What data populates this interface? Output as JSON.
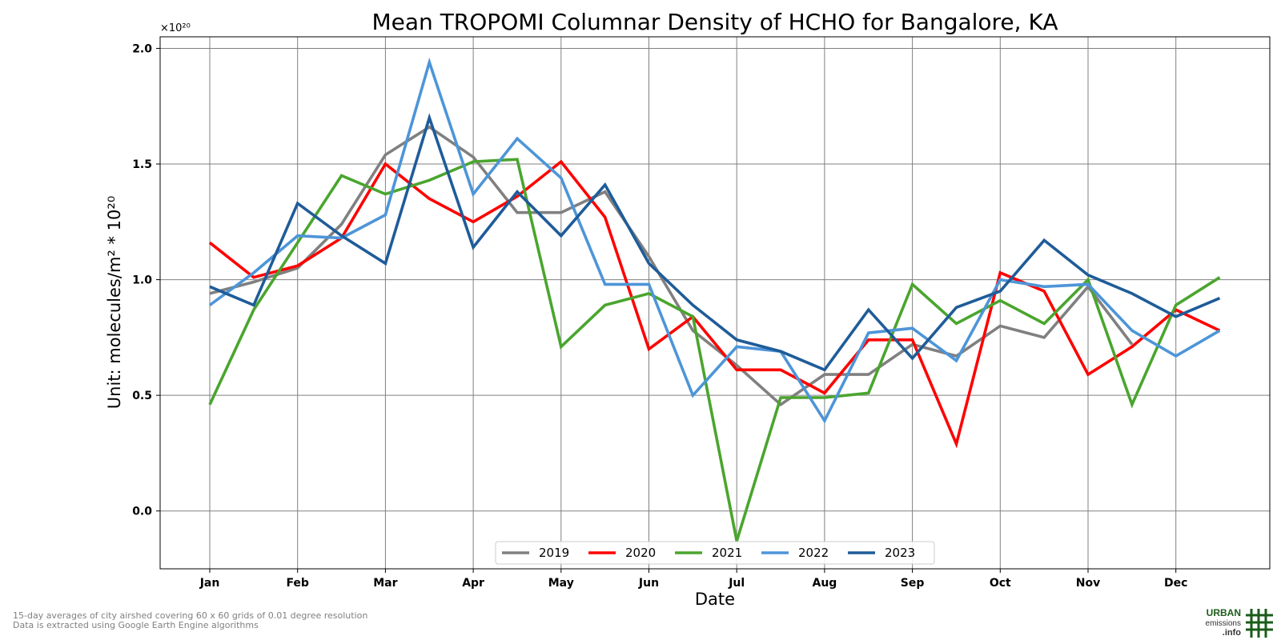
{
  "chart_data": {
    "type": "line",
    "title": "Mean TROPOMI Columnar Density of HCHO for Bangalore, KA",
    "xlabel": "Date",
    "ylabel": "Unit: molecules/m² * 10²⁰",
    "y_scale_label": "×10²⁰",
    "ylim": [
      -0.25,
      2.05
    ],
    "y_ticks": [
      0.0,
      0.5,
      1.0,
      1.5,
      2.0
    ],
    "y_tick_labels": [
      "0.0",
      "0.5",
      "1.0",
      "1.5",
      "2.0"
    ],
    "x_ticks": [
      "Jan",
      "Feb",
      "Mar",
      "Apr",
      "May",
      "Jun",
      "Jul",
      "Aug",
      "Sep",
      "Oct",
      "Nov",
      "Dec"
    ],
    "grid": true,
    "legend_position": "bottom-center",
    "series": [
      {
        "name": "2019",
        "color": "#808080",
        "values": [
          0.94,
          0.99,
          1.05,
          1.24,
          1.54,
          1.66,
          1.53,
          1.29,
          1.29,
          1.38,
          1.1,
          0.78,
          0.63,
          0.46,
          0.59,
          0.59,
          0.72,
          0.67,
          0.8,
          0.75,
          0.97,
          0.72
        ]
      },
      {
        "name": "2020",
        "color": "#ff0000",
        "values": [
          1.16,
          1.01,
          1.06,
          1.18,
          1.5,
          1.35,
          1.25,
          1.36,
          1.51,
          1.27,
          0.7,
          0.84,
          0.61,
          0.61,
          0.51,
          0.74,
          0.74,
          0.29,
          1.03,
          0.95,
          0.59,
          0.71,
          0.87,
          0.78
        ]
      },
      {
        "name": "2021",
        "color": "#4aa52e",
        "values": [
          0.46,
          0.87,
          1.16,
          1.45,
          1.37,
          1.43,
          1.51,
          1.52,
          0.71,
          0.89,
          0.94,
          0.84,
          -0.13,
          0.49,
          0.49,
          0.51,
          0.98,
          0.81,
          0.91,
          0.81,
          1.0,
          0.46,
          0.89,
          1.01
        ]
      },
      {
        "name": "2022",
        "color": "#4d95d8",
        "values": [
          0.89,
          1.03,
          1.19,
          1.18,
          1.28,
          1.94,
          1.37,
          1.61,
          1.44,
          0.98,
          0.98,
          0.5,
          0.71,
          0.69,
          0.39,
          0.77,
          0.79,
          0.65,
          1.0,
          0.97,
          0.98,
          0.78,
          0.67,
          0.78
        ]
      },
      {
        "name": "2023",
        "color": "#1f5c99",
        "values": [
          0.97,
          0.89,
          1.33,
          1.19,
          1.07,
          1.7,
          1.14,
          1.38,
          1.19,
          1.41,
          1.07,
          0.89,
          0.74,
          0.69,
          0.61,
          0.87,
          0.66,
          0.88,
          0.95,
          1.17,
          1.02,
          0.94,
          0.84,
          0.92
        ]
      }
    ]
  },
  "footnotes": {
    "line1": "15-day averages of city airshed covering 60 x 60 grids of 0.01 degree resolution",
    "line2": "Data is extracted using Google Earth Engine algorithms"
  },
  "logo": {
    "word1": "URBAN",
    "word2": "emissions",
    "word3": ".info",
    "color": "#1a5c1a"
  }
}
